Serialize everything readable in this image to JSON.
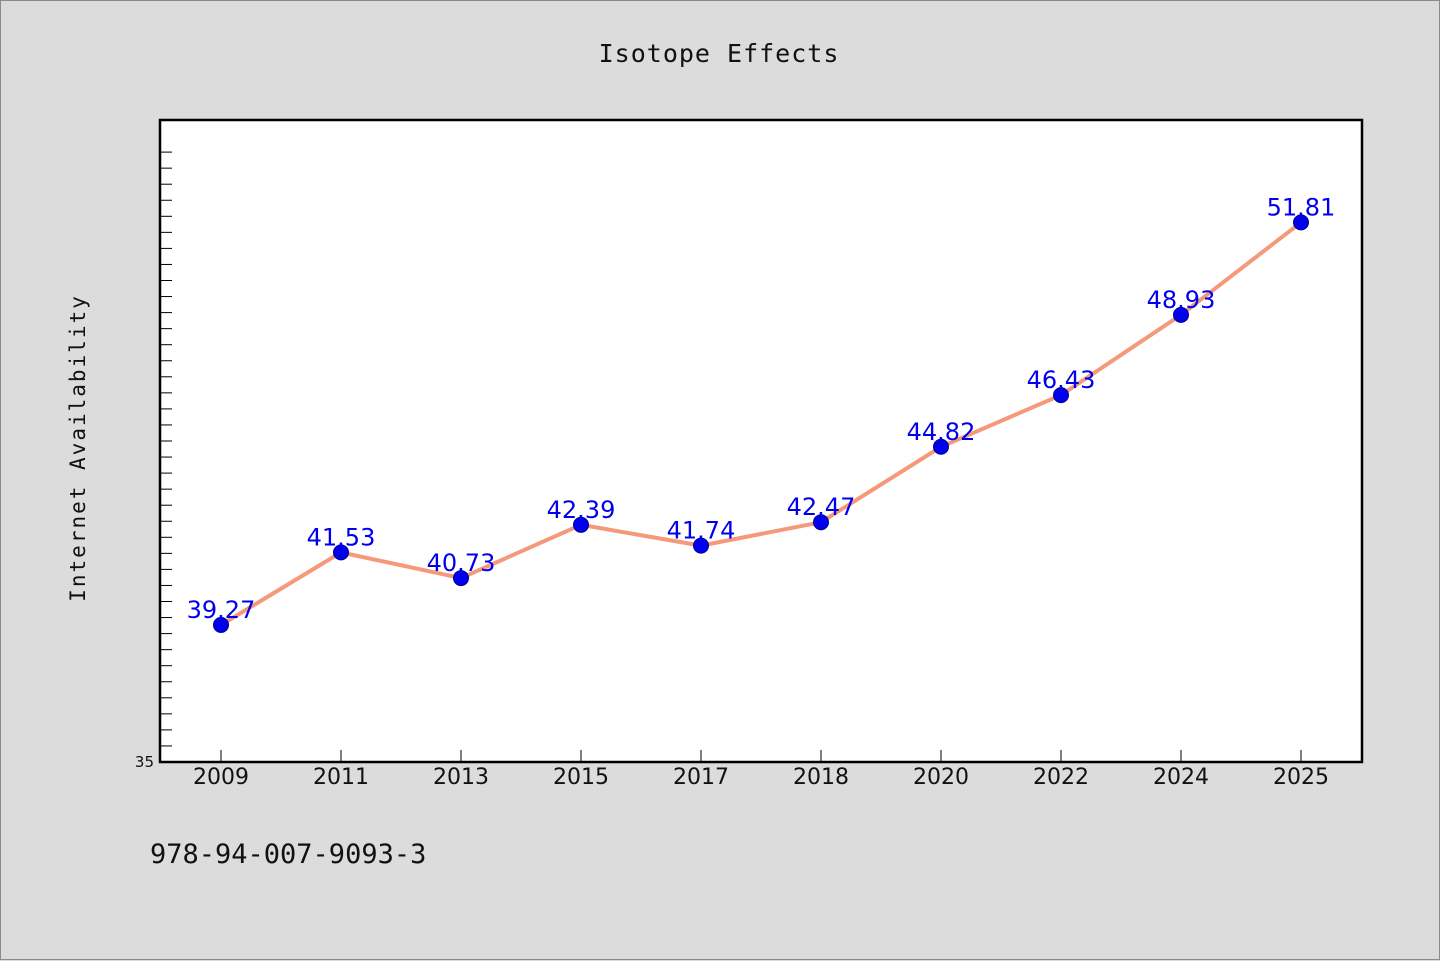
{
  "chart_data": {
    "type": "line",
    "title": "Isotope Effects",
    "xlabel": "",
    "ylabel": "Internet Availability",
    "categories": [
      "2009",
      "2011",
      "2013",
      "2015",
      "2017",
      "2018",
      "2020",
      "2022",
      "2024",
      "2025"
    ],
    "series": [
      {
        "values": [
          39.27,
          41.53,
          40.73,
          42.39,
          41.74,
          42.47,
          44.82,
          46.43,
          48.93,
          51.81
        ],
        "labels": [
          "39.27",
          "41.53",
          "40.73",
          "42.39",
          "41.74",
          "42.47",
          "44.82",
          "46.43",
          "48.93",
          "51.81"
        ],
        "line_color": "#f4997a",
        "marker_color": "#0000ee",
        "label_color": "#0000ee"
      }
    ],
    "ylim": [
      35,
      55
    ],
    "yticks_labeled": [
      "35"
    ],
    "grid": false,
    "legend": "none"
  },
  "footer": {
    "isbn": "978-94-007-9093-3"
  },
  "colors": {
    "background": "#dcdcdc",
    "plot_background": "#ffffff",
    "axis": "#000000"
  }
}
